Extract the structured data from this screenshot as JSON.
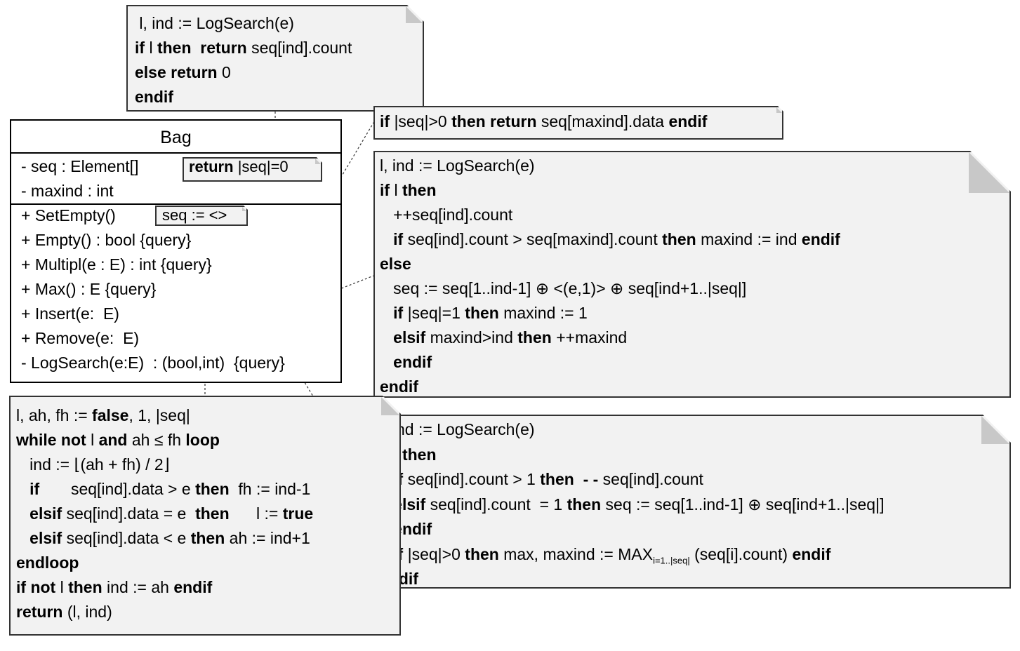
{
  "class_box": {
    "name": "Bag",
    "attributes": [
      "- seq : Element[]",
      "- maxind : int"
    ],
    "methods": [
      "+ SetEmpty()",
      "+ Empty() : bool {query}",
      "+ Multipl(e : E) : int {query}",
      "+ Max() : E {query}",
      "+ Insert(e:  E)",
      "+ Remove(e:  E)",
      "- LogSearch(e:E)  : (bool,int)  {query}"
    ]
  },
  "notes": {
    "setempty": [
      [
        [
          "n",
          "seq := <>"
        ]
      ]
    ],
    "empty": [
      [
        [
          "b",
          "return "
        ],
        [
          "n",
          "|seq|=0"
        ]
      ]
    ],
    "multipl": [
      [
        [
          "n",
          " l, ind := LogSearch(e)"
        ]
      ],
      [
        [
          "b",
          "if "
        ],
        [
          "n",
          "l "
        ],
        [
          "b",
          "then  return "
        ],
        [
          "n",
          "seq[ind].count"
        ]
      ],
      [
        [
          "b",
          "else return "
        ],
        [
          "n",
          "0"
        ]
      ],
      [
        [
          "b",
          "endif"
        ]
      ]
    ],
    "max": [
      [
        [
          "b",
          "if "
        ],
        [
          "n",
          "|seq|>0 "
        ],
        [
          "b",
          "then return "
        ],
        [
          "n",
          "seq[maxind].data "
        ],
        [
          "b",
          "endif"
        ]
      ]
    ],
    "insert": [
      [
        [
          "n",
          "l, ind := LogSearch(e)"
        ]
      ],
      [
        [
          "b",
          "if "
        ],
        [
          "n",
          "l "
        ],
        [
          "b",
          "then"
        ]
      ],
      [
        [
          "n",
          "   ++seq[ind].count"
        ]
      ],
      [
        [
          "b",
          "   if "
        ],
        [
          "n",
          "seq[ind].count > seq[maxind].count "
        ],
        [
          "b",
          "then "
        ],
        [
          "n",
          "maxind := ind "
        ],
        [
          "b",
          "endif"
        ]
      ],
      [
        [
          "b",
          "else"
        ]
      ],
      [
        [
          "n",
          "   seq := seq[1..ind-1] ⊕ <(e,1)> ⊕ seq[ind+1..|seq|]"
        ]
      ],
      [
        [
          "b",
          "   if "
        ],
        [
          "n",
          "|seq|=1 "
        ],
        [
          "b",
          "then "
        ],
        [
          "n",
          "maxind := 1"
        ]
      ],
      [
        [
          "b",
          "   elsif "
        ],
        [
          "n",
          "maxind>ind "
        ],
        [
          "b",
          "then "
        ],
        [
          "n",
          "++maxind"
        ]
      ],
      [
        [
          "b",
          "   endif"
        ]
      ],
      [
        [
          "b",
          "endif"
        ]
      ]
    ],
    "remove": [
      [
        [
          "n",
          "l, ind := LogSearch(e)"
        ]
      ],
      [
        [
          "b",
          "if "
        ],
        [
          "n",
          "l "
        ],
        [
          "b",
          "then"
        ]
      ],
      [
        [
          "b",
          "   if "
        ],
        [
          "n",
          "seq[ind].count > 1 "
        ],
        [
          "b",
          "then  - - "
        ],
        [
          "n",
          "seq[ind].count"
        ]
      ],
      [
        [
          "b",
          "   elsif "
        ],
        [
          "n",
          "seq[ind].count  = 1 "
        ],
        [
          "b",
          "then "
        ],
        [
          "n",
          "seq := seq[1..ind-1] ⊕ seq[ind+1..|seq|]"
        ]
      ],
      [
        [
          "b",
          "   endif"
        ]
      ],
      [
        [
          "b",
          "   if "
        ],
        [
          "n",
          "|seq|>0 "
        ],
        [
          "b",
          "then "
        ],
        [
          "n",
          "max, maxind := MAX"
        ],
        [
          "s",
          "i=1..|seq|"
        ],
        [
          "n",
          " (seq[i].count) "
        ],
        [
          "b",
          "endif"
        ]
      ],
      [
        [
          "b",
          "endif"
        ]
      ]
    ],
    "logsearch": [
      [
        [
          "n",
          "l, ah, fh := "
        ],
        [
          "b",
          "false"
        ],
        [
          "n",
          ", 1, |seq|"
        ]
      ],
      [
        [
          "b",
          "while not "
        ],
        [
          "n",
          "l "
        ],
        [
          "b",
          "and "
        ],
        [
          "n",
          "ah ≤ fh "
        ],
        [
          "b",
          "loop"
        ]
      ],
      [
        [
          "n",
          "   ind := ⌊(ah + fh) / 2⌋"
        ]
      ],
      [
        [
          "b",
          "   if       "
        ],
        [
          "n",
          "seq[ind].data > e "
        ],
        [
          "b",
          "then  "
        ],
        [
          "n",
          "fh := ind-1"
        ]
      ],
      [
        [
          "b",
          "   elsif "
        ],
        [
          "n",
          "seq[ind].data = e  "
        ],
        [
          "b",
          "then      "
        ],
        [
          "n",
          "l := "
        ],
        [
          "b",
          "true"
        ]
      ],
      [
        [
          "b",
          "   elsif "
        ],
        [
          "n",
          "seq[ind].data < e "
        ],
        [
          "b",
          "then "
        ],
        [
          "n",
          "ah := ind+1"
        ]
      ],
      [
        [
          "b",
          "endloop"
        ]
      ],
      [
        [
          "b",
          "if not "
        ],
        [
          "n",
          "l "
        ],
        [
          "b",
          "then "
        ],
        [
          "n",
          "ind := ah "
        ],
        [
          "b",
          "endif"
        ]
      ],
      [
        [
          "b",
          "return "
        ],
        [
          "n",
          "(l, ind)"
        ]
      ]
    ]
  }
}
